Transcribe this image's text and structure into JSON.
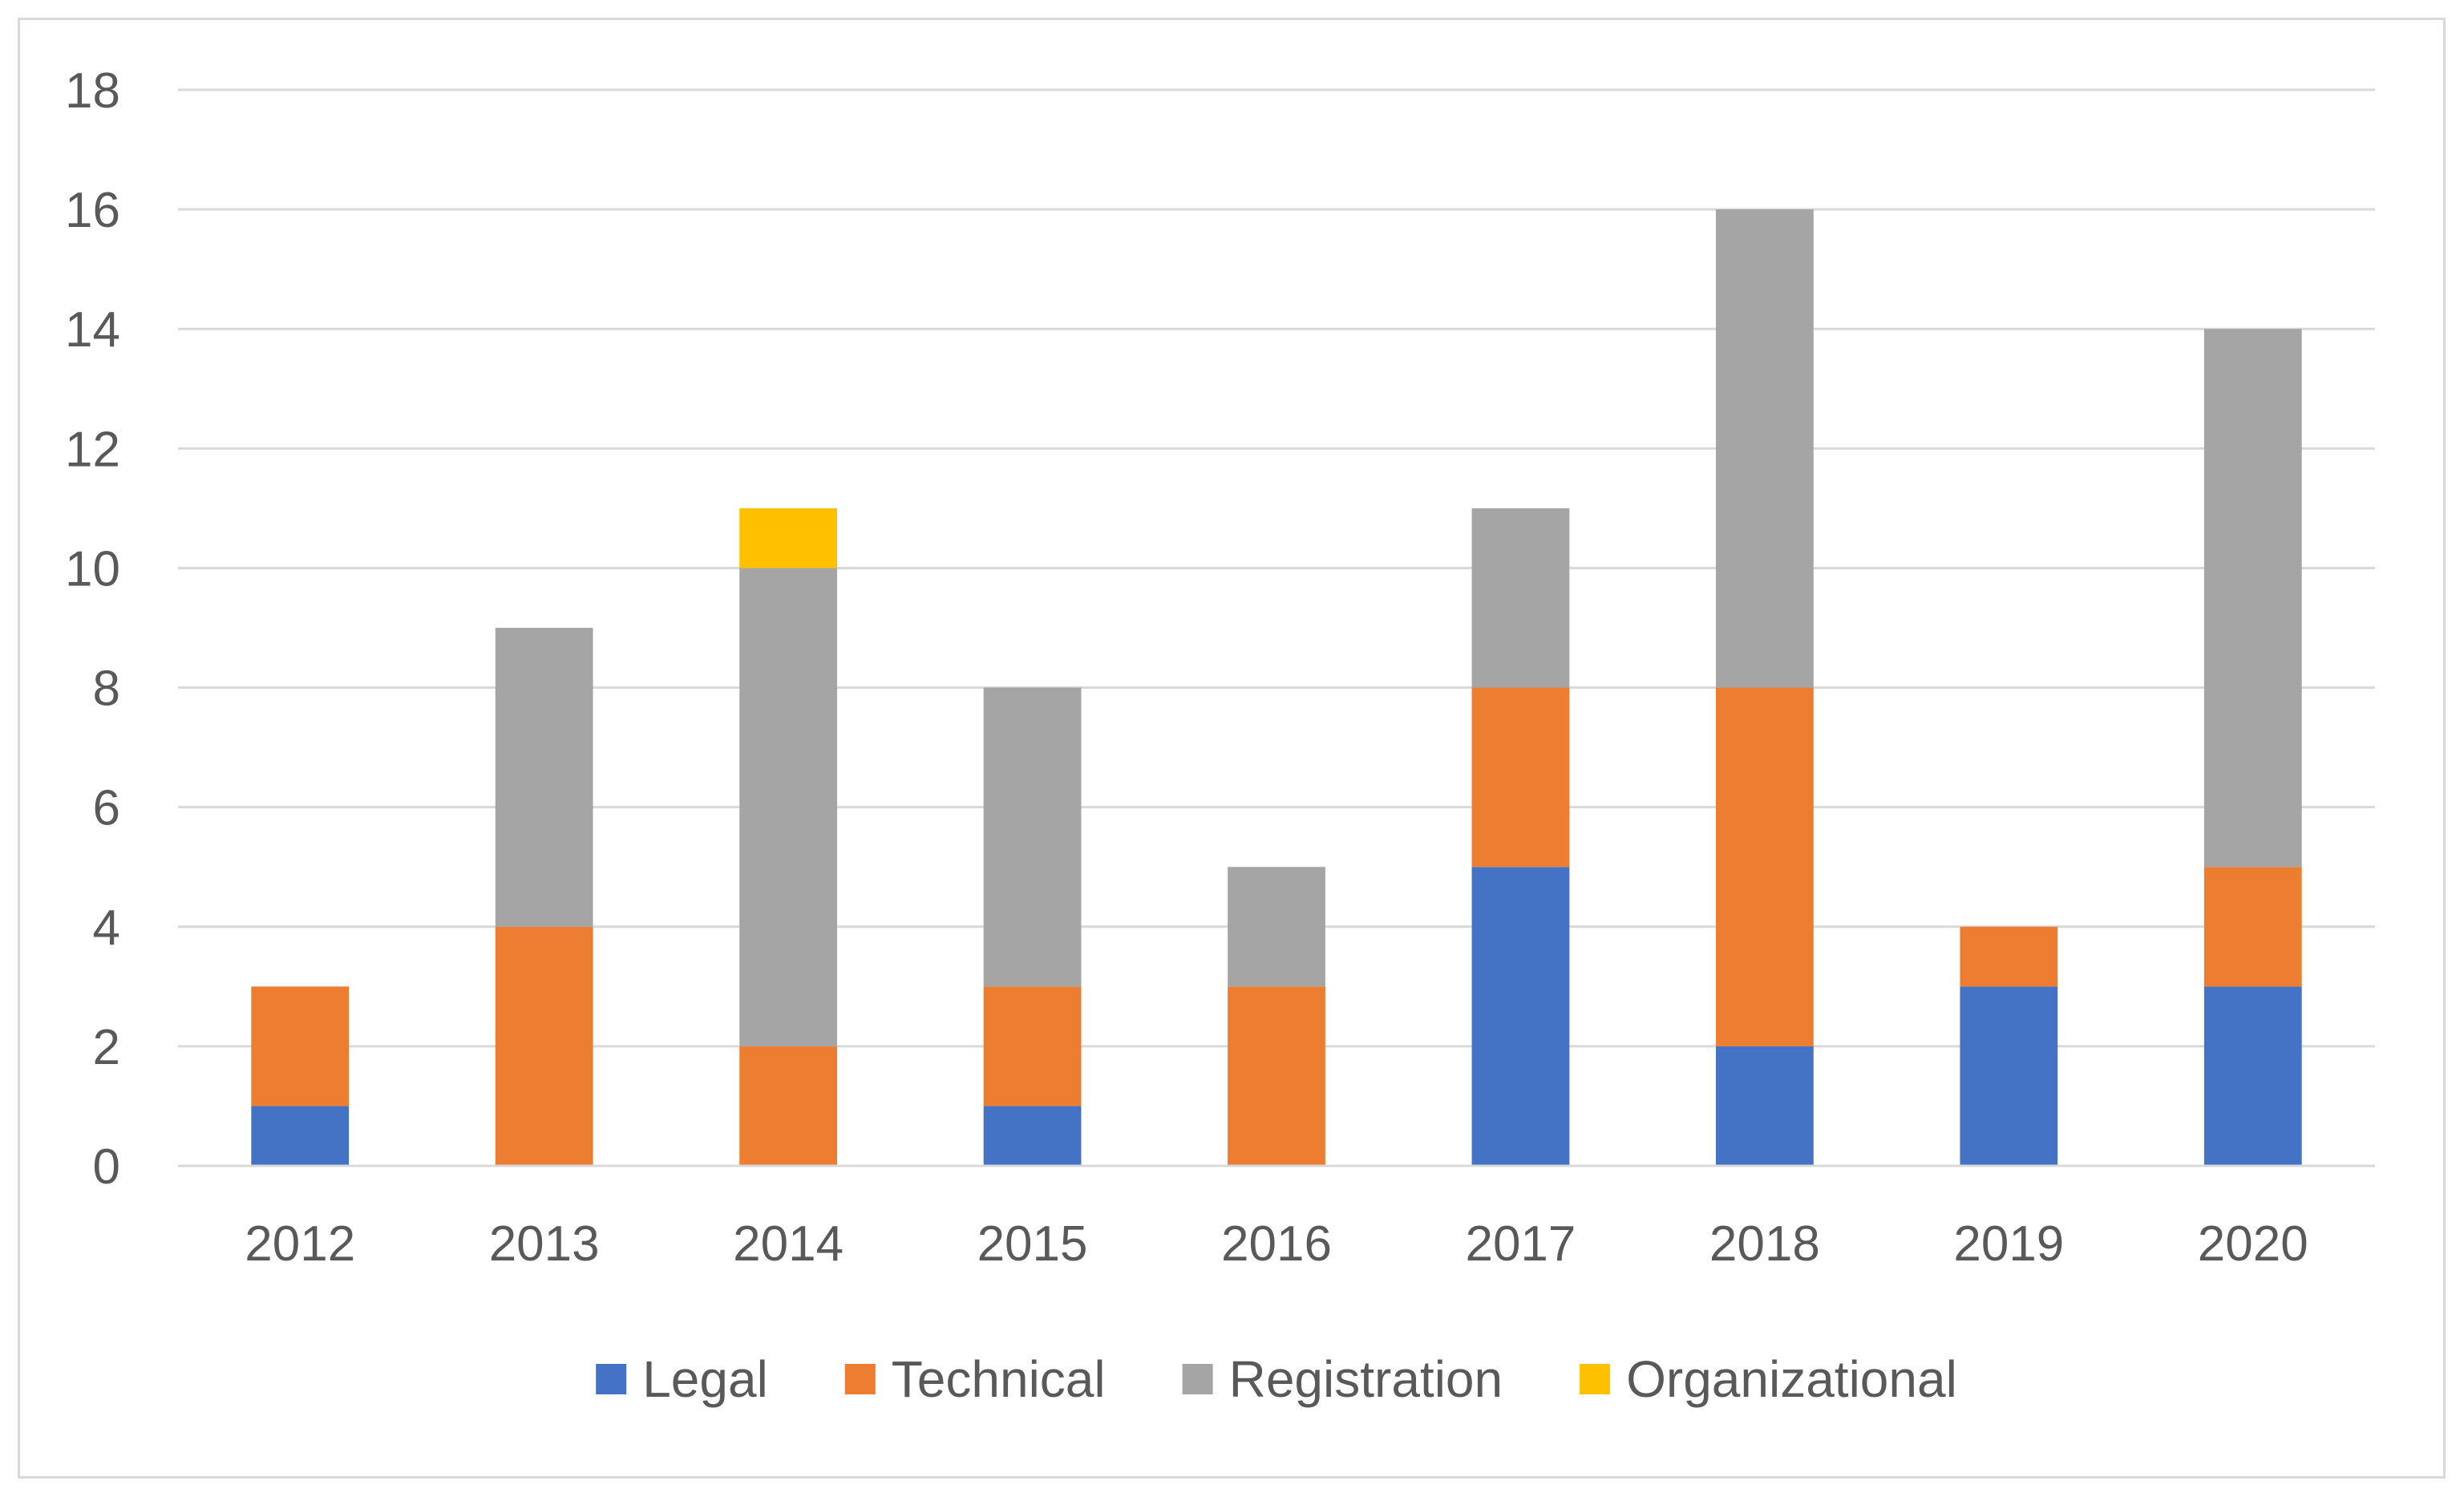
{
  "chart_data": {
    "type": "bar",
    "stacked": true,
    "title": "",
    "xlabel": "",
    "ylabel": "",
    "ylim": [
      0,
      18
    ],
    "yticks": [
      0,
      2,
      4,
      6,
      8,
      10,
      12,
      14,
      16,
      18
    ],
    "grid": true,
    "legend_position": "bottom",
    "categories": [
      "2012",
      "2013",
      "2014",
      "2015",
      "2016",
      "2017",
      "2018",
      "2019",
      "2020"
    ],
    "series": [
      {
        "name": "Legal",
        "color": "#4472C4",
        "values": [
          1,
          0,
          0,
          1,
          0,
          5,
          2,
          3,
          3
        ]
      },
      {
        "name": "Technical",
        "color": "#ED7D31",
        "values": [
          2,
          4,
          2,
          2,
          3,
          3,
          6,
          1,
          2
        ]
      },
      {
        "name": "Registration",
        "color": "#A5A5A5",
        "values": [
          0,
          5,
          8,
          5,
          2,
          3,
          8,
          0,
          9
        ]
      },
      {
        "name": "Organizational",
        "color": "#FFC000",
        "values": [
          0,
          0,
          1,
          0,
          0,
          0,
          0,
          0,
          0
        ]
      }
    ]
  }
}
